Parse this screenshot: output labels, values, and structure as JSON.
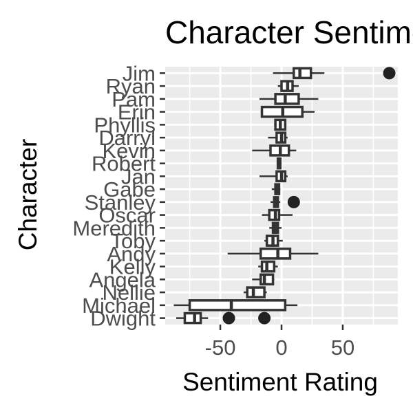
{
  "chart_data": {
    "type": "boxplot",
    "orientation": "horizontal",
    "title": "Character Sentiment",
    "xlabel": "Sentiment Rating",
    "ylabel": "Character",
    "xlim": [
      -95,
      95
    ],
    "xticks": [
      -50,
      0,
      50
    ],
    "xtick_labels": [
      "-50",
      "0",
      "50"
    ],
    "grid": true,
    "legend": "none",
    "colors": {
      "panel": "#ebebeb",
      "grid": "#ffffff",
      "box_stroke": "#333333",
      "box_fill": "#ffffff",
      "outlier": "#222222",
      "text": "#4d4d4d",
      "title": "#000000"
    },
    "categories": [
      "Jim",
      "Ryan",
      "Pam",
      "Erin",
      "Phyllis",
      "Darryl",
      "Kevin",
      "Robert",
      "Jan",
      "Gabe",
      "Stanley",
      "Oscar",
      "Meredith",
      "Toby",
      "Andy",
      "Kelly",
      "Angela",
      "Nellie",
      "Michael",
      "Dwight"
    ],
    "boxes": [
      {
        "name": "Jim",
        "whisker_low": -7,
        "q1": 10,
        "median": 15,
        "q3": 24,
        "whisker_high": 35,
        "outliers": [
          88
        ]
      },
      {
        "name": "Ryan",
        "whisker_low": -3,
        "q1": 0,
        "median": 5,
        "q3": 9,
        "whisker_high": 14,
        "outliers": []
      },
      {
        "name": "Pam",
        "whisker_low": -18,
        "q1": -5,
        "median": 3,
        "q3": 14,
        "whisker_high": 30,
        "outliers": []
      },
      {
        "name": "Erin",
        "whisker_low": -17,
        "q1": -16,
        "median": 1,
        "q3": 17,
        "whisker_high": 27,
        "outliers": []
      },
      {
        "name": "Phyllis",
        "whisker_low": -6,
        "q1": -5,
        "median": -1,
        "q3": 3,
        "whisker_high": 4,
        "outliers": []
      },
      {
        "name": "Darryl",
        "whisker_low": -11,
        "q1": -4,
        "median": 0,
        "q3": 3,
        "whisker_high": 5,
        "outliers": []
      },
      {
        "name": "Kevin",
        "whisker_low": -24,
        "q1": -9,
        "median": -1,
        "q3": 6,
        "whisker_high": 12,
        "outliers": []
      },
      {
        "name": "Robert",
        "whisker_low": -4,
        "q1": -3,
        "median": -2,
        "q3": -1,
        "whisker_high": 0,
        "outliers": []
      },
      {
        "name": "Jan",
        "whisker_low": -18,
        "q1": -4,
        "median": 0,
        "q3": 3,
        "whisker_high": 5,
        "outliers": []
      },
      {
        "name": "Gabe",
        "whisker_low": -8,
        "q1": -5,
        "median": -3,
        "q3": -2,
        "whisker_high": -1,
        "outliers": []
      },
      {
        "name": "Stanley",
        "whisker_low": -9,
        "q1": -6,
        "median": -4,
        "q3": -3,
        "whisker_high": -1,
        "outliers": [
          10
        ]
      },
      {
        "name": "Oscar",
        "whisker_low": -16,
        "q1": -10,
        "median": -5,
        "q3": -2,
        "whisker_high": 9,
        "outliers": []
      },
      {
        "name": "Meredith",
        "whisker_low": -10,
        "q1": -7,
        "median": -5,
        "q3": -3,
        "whisker_high": 0,
        "outliers": []
      },
      {
        "name": "Toby",
        "whisker_low": -14,
        "q1": -12,
        "median": -7,
        "q3": -3,
        "whisker_high": 1,
        "outliers": []
      },
      {
        "name": "Andy",
        "whisker_low": -44,
        "q1": -17,
        "median": -3,
        "q3": 7,
        "whisker_high": 30,
        "outliers": []
      },
      {
        "name": "Kelly",
        "whisker_low": -19,
        "q1": -16,
        "median": -12,
        "q3": -6,
        "whisker_high": -3,
        "outliers": []
      },
      {
        "name": "Angela",
        "whisker_low": -24,
        "q1": -17,
        "median": -14,
        "q3": -7,
        "whisker_high": -6,
        "outliers": []
      },
      {
        "name": "Nellie",
        "whisker_low": -31,
        "q1": -28,
        "median": -23,
        "q3": -14,
        "whisker_high": -12,
        "outliers": []
      },
      {
        "name": "Michael",
        "whisker_low": -88,
        "q1": -75,
        "median": -41,
        "q3": 3,
        "whisker_high": 13,
        "outliers": []
      },
      {
        "name": "Dwight",
        "whisker_low": -86,
        "q1": -79,
        "median": -71,
        "q3": -66,
        "whisker_high": -60,
        "outliers": [
          -43,
          -14
        ]
      }
    ]
  }
}
